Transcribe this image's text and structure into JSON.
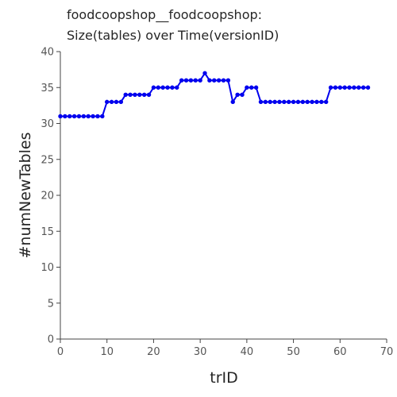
{
  "chart_data": {
    "type": "line",
    "title": [
      "foodcoopshop__foodcoopshop:",
      "Size(tables) over Time(versionID)"
    ],
    "xlabel": "trID",
    "ylabel": "#numNewTables",
    "xlim": [
      0,
      70
    ],
    "ylim": [
      0,
      40
    ],
    "xticks": [
      0,
      10,
      20,
      30,
      40,
      50,
      60,
      70
    ],
    "yticks": [
      0,
      5,
      10,
      15,
      20,
      25,
      30,
      35,
      40
    ],
    "grid": false,
    "series": [
      {
        "name": "numNewTables",
        "color": "#0000ee",
        "x": [
          0,
          1,
          2,
          3,
          4,
          5,
          6,
          7,
          8,
          9,
          10,
          11,
          12,
          13,
          14,
          15,
          16,
          17,
          18,
          19,
          20,
          21,
          22,
          23,
          24,
          25,
          26,
          27,
          28,
          29,
          30,
          31,
          32,
          33,
          34,
          35,
          36,
          37,
          38,
          39,
          40,
          41,
          42,
          43,
          44,
          45,
          46,
          47,
          48,
          49,
          50,
          51,
          52,
          53,
          54,
          55,
          56,
          57,
          58,
          59,
          60,
          61,
          62,
          63,
          64,
          65,
          66
        ],
        "values": [
          31,
          31,
          31,
          31,
          31,
          31,
          31,
          31,
          31,
          31,
          33,
          33,
          33,
          33,
          34,
          34,
          34,
          34,
          34,
          34,
          35,
          35,
          35,
          35,
          35,
          35,
          36,
          36,
          36,
          36,
          36,
          37,
          36,
          36,
          36,
          36,
          36,
          33,
          34,
          34,
          35,
          35,
          35,
          33,
          33,
          33,
          33,
          33,
          33,
          33,
          33,
          33,
          33,
          33,
          33,
          33,
          33,
          33,
          35,
          35,
          35,
          35,
          35,
          35,
          35,
          35,
          35
        ]
      }
    ]
  }
}
